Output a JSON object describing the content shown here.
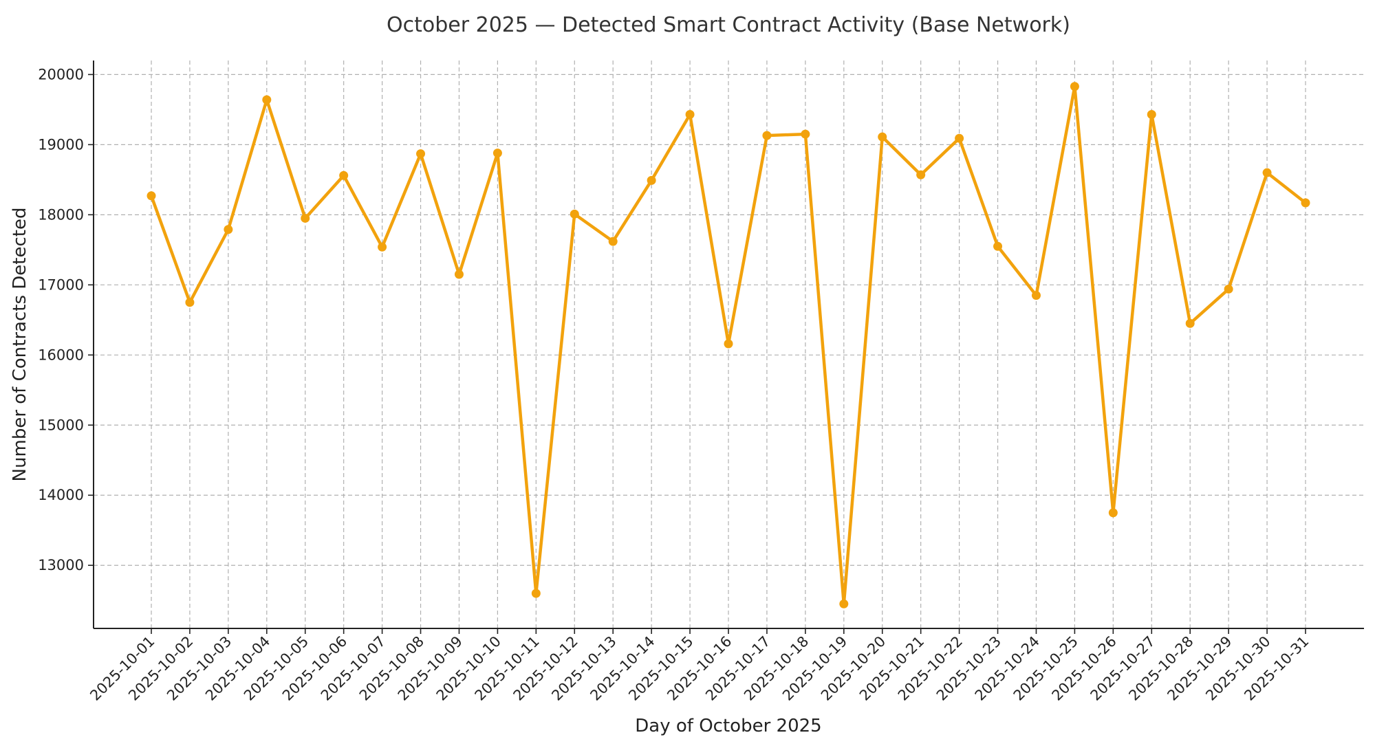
{
  "chart_data": {
    "type": "line",
    "title": "October 2025 — Detected Smart Contract Activity (Base Network)",
    "xlabel": "Day of October 2025",
    "ylabel": "Number of Contracts Detected",
    "ylim": [
      12100,
      20200
    ],
    "yticks": [
      13000,
      14000,
      15000,
      16000,
      17000,
      18000,
      19000,
      20000
    ],
    "grid": true,
    "line_color": "#F2A20D",
    "categories": [
      "2025-10-01",
      "2025-10-02",
      "2025-10-03",
      "2025-10-04",
      "2025-10-05",
      "2025-10-06",
      "2025-10-07",
      "2025-10-08",
      "2025-10-09",
      "2025-10-10",
      "2025-10-11",
      "2025-10-12",
      "2025-10-13",
      "2025-10-14",
      "2025-10-15",
      "2025-10-16",
      "2025-10-17",
      "2025-10-18",
      "2025-10-19",
      "2025-10-20",
      "2025-10-21",
      "2025-10-22",
      "2025-10-23",
      "2025-10-24",
      "2025-10-25",
      "2025-10-26",
      "2025-10-27",
      "2025-10-28",
      "2025-10-29",
      "2025-10-30",
      "2025-10-31"
    ],
    "series": [
      {
        "values": [
          18270,
          16750,
          17790,
          19640,
          17950,
          18560,
          17540,
          18870,
          17150,
          18880,
          12600,
          18010,
          17620,
          18490,
          19430,
          16160,
          19130,
          19150,
          12450,
          19110,
          18570,
          19090,
          17550,
          16850,
          19830,
          13750,
          19430,
          16450,
          16940,
          18600,
          18170
        ]
      }
    ]
  }
}
